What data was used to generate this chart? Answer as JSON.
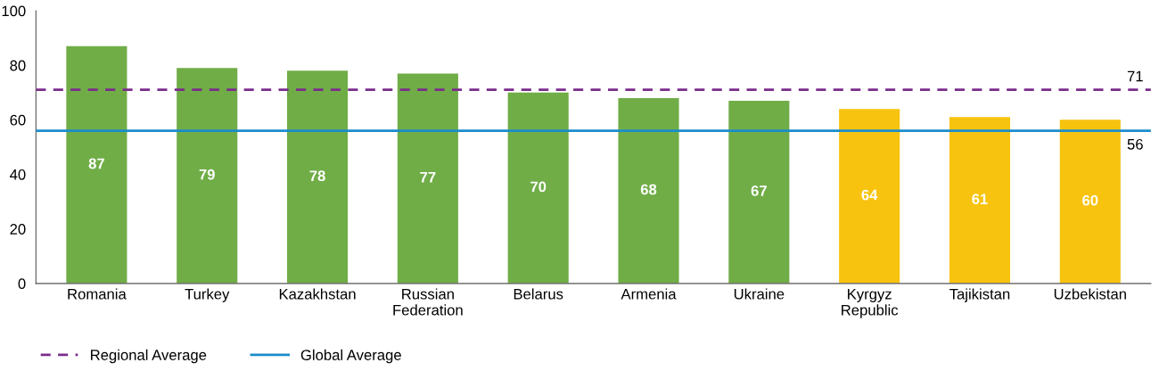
{
  "chart_data": {
    "type": "bar",
    "categories": [
      "Romania",
      "Turkey",
      "Kazakhstan",
      "Russian\nFederation",
      "Belarus",
      "Armenia",
      "Ukraine",
      "Kyrgyz\nRepublic",
      "Tajikistan",
      "Uzbekistan"
    ],
    "values": [
      87,
      79,
      78,
      77,
      70,
      68,
      67,
      64,
      61,
      60
    ],
    "colors": [
      "#70ad47",
      "#70ad47",
      "#70ad47",
      "#70ad47",
      "#70ad47",
      "#70ad47",
      "#70ad47",
      "#f7c30f",
      "#f7c30f",
      "#f7c30f"
    ],
    "data_labels": true,
    "ylim": [
      0,
      100
    ],
    "yticks": [
      0,
      20,
      40,
      60,
      80,
      100
    ],
    "grid": false,
    "legend": "bottom left",
    "annotations": [
      {
        "text": "71",
        "y": 71
      },
      {
        "text": "56",
        "y": 56
      }
    ],
    "ref_lines": [
      {
        "axis": "y",
        "value": 71,
        "label": "Regional Average",
        "color": "#7b2c8c",
        "line_style": "dashed"
      },
      {
        "axis": "y",
        "value": 56,
        "label": "Global Average",
        "color": "#1b8ccc",
        "line_style": "solid"
      }
    ]
  }
}
